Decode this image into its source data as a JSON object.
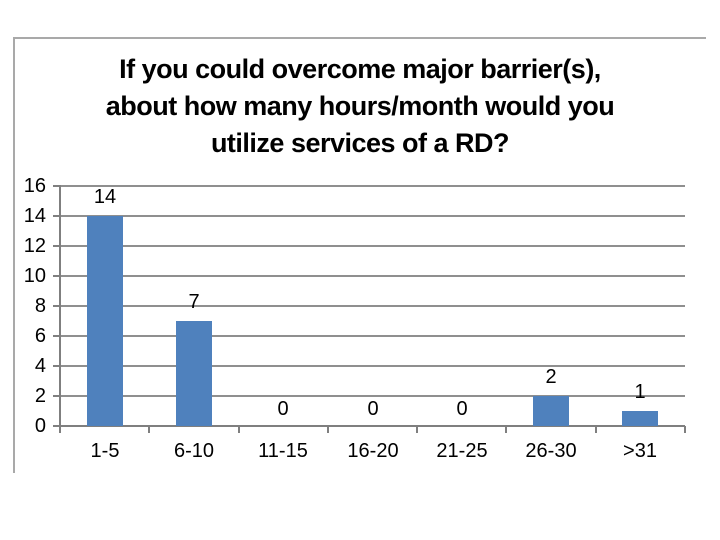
{
  "slide": {
    "background": "#ffffff",
    "border_color": "#a9a9a9"
  },
  "title": {
    "lines": [
      "If you could overcome major barrier(s),",
      "about how many hours/month would you",
      "utilize services of a RD?"
    ]
  },
  "chart_data": {
    "type": "bar",
    "title": "If you could overcome major barrier(s), about how many hours/month would you utilize services of a RD?",
    "categories": [
      "1-5",
      "6-10",
      "11-15",
      "16-20",
      "21-25",
      "26-30",
      ">31"
    ],
    "values": [
      14,
      7,
      0,
      0,
      0,
      2,
      1
    ],
    "data_labels": [
      "14",
      "7",
      "0",
      "0",
      "0",
      "2",
      "1"
    ],
    "xlabel": "",
    "ylabel": "",
    "ylim": [
      0,
      16
    ],
    "yticks": [
      0,
      2,
      4,
      6,
      8,
      10,
      12,
      14,
      16
    ],
    "grid": true,
    "legend": false,
    "bar_color": "#4f81bd",
    "gridline_color": "#8f8f8f",
    "axis_color": "#7f7f7f",
    "label_color": "#000000"
  }
}
